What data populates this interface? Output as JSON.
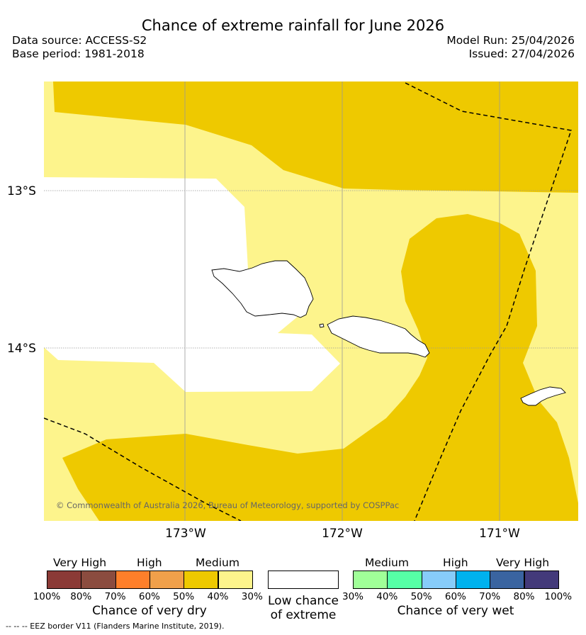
{
  "title": "Chance of extreme rainfall for June 2026",
  "meta": {
    "data_source": "Data source: ACCESS-S2",
    "base_period": "Base period: 1981-2018",
    "model_run": "Model Run: 25/04/2026",
    "issued": "Issued: 27/04/2026"
  },
  "map": {
    "lat_labels": [
      "13°S",
      "14°S"
    ],
    "lon_labels": [
      "173°W",
      "172°W",
      "171°W"
    ],
    "copyright": "© Commonwealth of Australia 2026, Bureau of Meteorology, supported by COSPPac",
    "colors": {
      "medium_dry_40_50": "#eec900",
      "medium_dry_30_40": "#fdf48c",
      "low_chance": "#ffffff"
    }
  },
  "legend": {
    "dry": {
      "headers": [
        "Very High",
        "High",
        "Medium"
      ],
      "colors": [
        "#8b3a36",
        "#8b4c3f",
        "#fe7f2a",
        "#f0a04a",
        "#eec900",
        "#fdf48c"
      ],
      "ticks": [
        "100%",
        "80%",
        "70%",
        "60%",
        "50%",
        "40%",
        "30%"
      ],
      "title": "Chance of very dry"
    },
    "low": {
      "color": "#ffffff",
      "title_line1": "Low chance",
      "title_line2": "of extreme"
    },
    "wet": {
      "headers": [
        "Medium",
        "High",
        "Very High"
      ],
      "colors": [
        "#a0ff98",
        "#56ffa6",
        "#87ccfa",
        "#00b2ee",
        "#3a64a0",
        "#433a7a"
      ],
      "ticks": [
        "30%",
        "40%",
        "50%",
        "60%",
        "70%",
        "80%",
        "100%"
      ],
      "title": "Chance of very wet"
    }
  },
  "footnote": "-- -- -- EEZ border V11 (Flanders Marine Institute, 2019)."
}
